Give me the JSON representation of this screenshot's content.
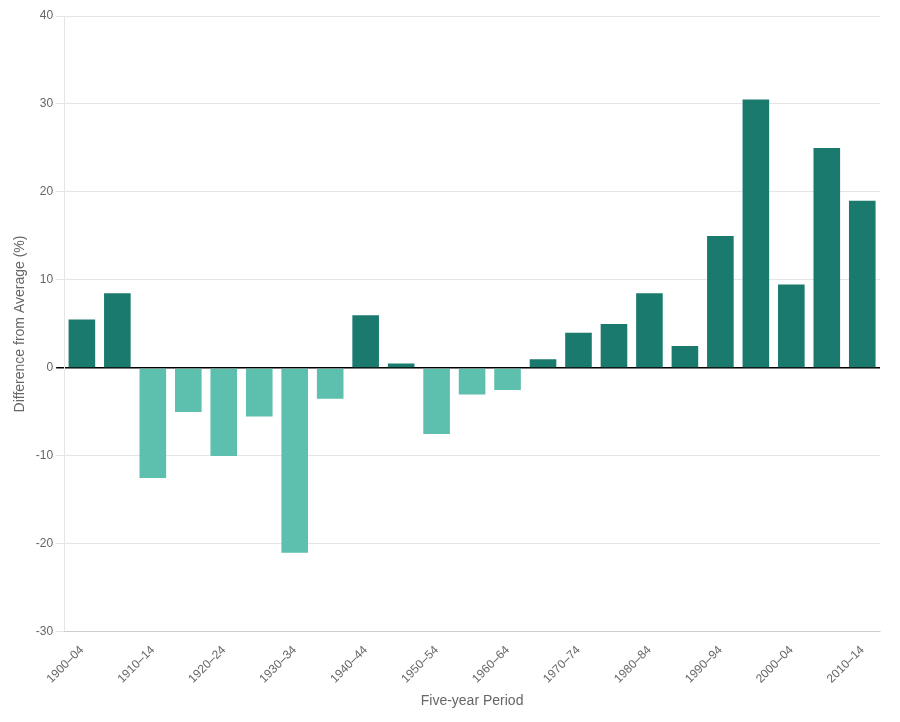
{
  "chart_data": {
    "type": "bar",
    "categories": [
      "1900–04",
      null,
      "1910–14",
      null,
      "1920–24",
      null,
      "1930–34",
      null,
      "1940–44",
      null,
      "1950–54",
      null,
      "1960–64",
      null,
      "1970–74",
      null,
      "1980–84",
      null,
      "1990–94",
      null,
      "2000–04",
      null,
      "2010–14"
    ],
    "values": [
      5.5,
      8.5,
      -12.5,
      -5.0,
      -10.0,
      -5.5,
      -21.0,
      -3.5,
      6.0,
      0.5,
      -7.5,
      -3.0,
      -2.5,
      1.0,
      4.0,
      5.0,
      8.5,
      2.5,
      15.0,
      30.5,
      9.5,
      25.0,
      19.0
    ],
    "colors": [
      "#1A7A6E",
      "#1A7A6E",
      "#5DBFAD",
      "#5DBFAD",
      "#5DBFAD",
      "#5DBFAD",
      "#5DBFAD",
      "#5DBFAD",
      "#1A7A6E",
      "#1A7A6E",
      "#5DBFAD",
      "#5DBFAD",
      "#5DBFAD",
      "#1A7A6E",
      "#1A7A6E",
      "#1A7A6E",
      "#1A7A6E",
      "#1A7A6E",
      "#1A7A6E",
      "#1A7A6E",
      "#1A7A6E",
      "#1A7A6E",
      "#1A7A6E"
    ],
    "xlabel": "Five-year Period",
    "ylabel": "Difference from Average (%)",
    "ylim": [
      -30,
      40
    ],
    "yticks": [
      -30,
      -20,
      -10,
      0,
      10,
      20,
      30,
      40
    ],
    "grid": true
  }
}
